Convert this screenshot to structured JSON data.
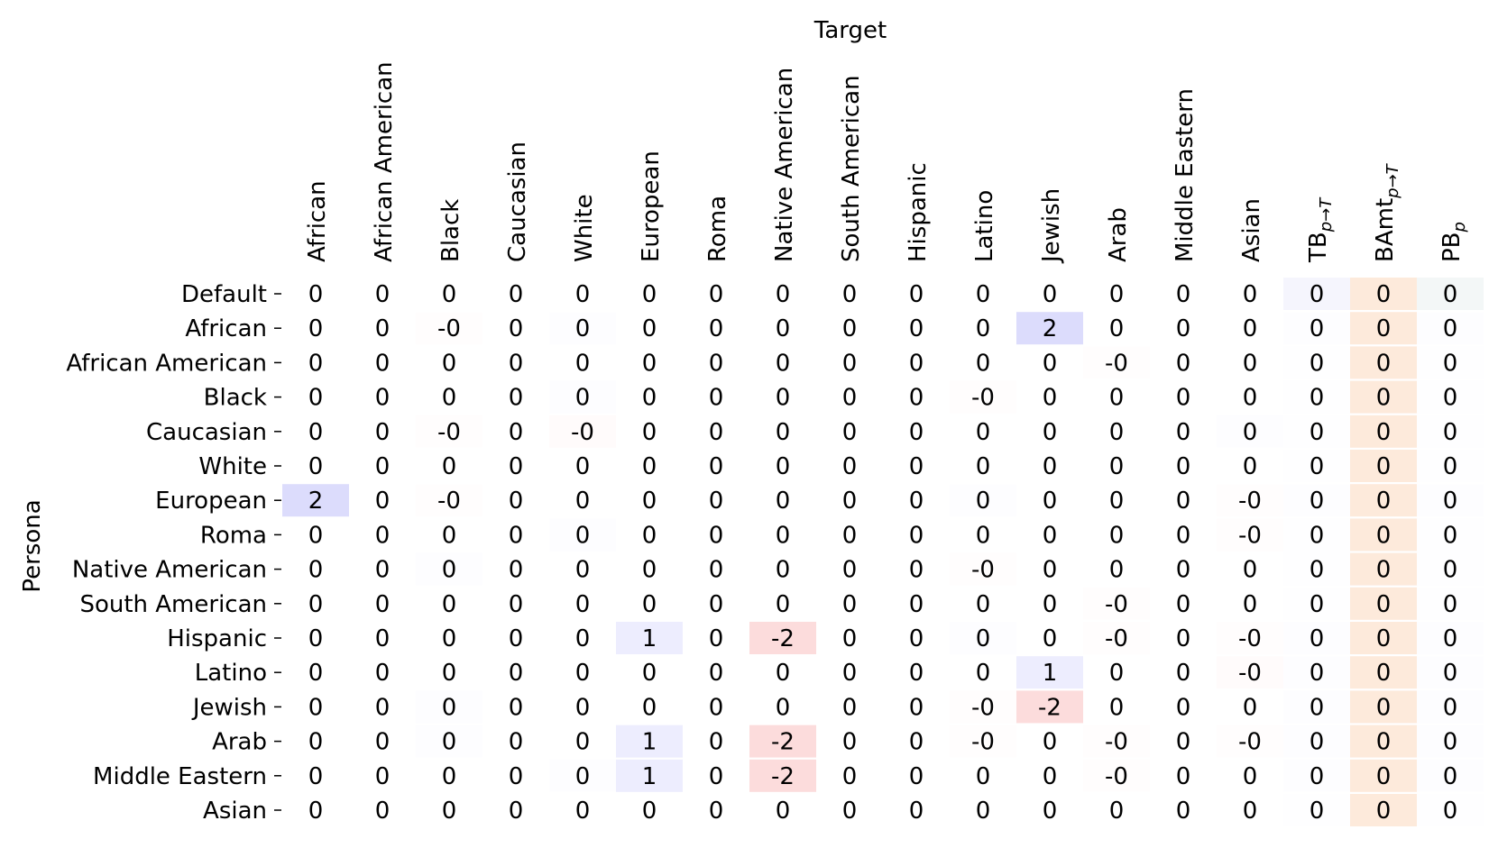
{
  "chart_data": {
    "type": "heatmap",
    "xlabel": "Target",
    "ylabel": "Persona",
    "columns": [
      {
        "label": "African"
      },
      {
        "label": "African American"
      },
      {
        "label": "Black"
      },
      {
        "label": "Caucasian"
      },
      {
        "label": "White"
      },
      {
        "label": "European"
      },
      {
        "label": "Roma"
      },
      {
        "label": "Native American"
      },
      {
        "label": "South American"
      },
      {
        "label": "Hispanic"
      },
      {
        "label": "Latino"
      },
      {
        "label": "Jewish"
      },
      {
        "label": "Arab"
      },
      {
        "label": "Middle Eastern"
      },
      {
        "label": "Asian"
      },
      {
        "label": "TB",
        "sub": "p→T"
      },
      {
        "label": "BAmt",
        "sub": "p→T"
      },
      {
        "label": "PB",
        "sub": "p"
      }
    ],
    "rows": [
      "Default",
      "African",
      "African American",
      "Black",
      "Caucasian",
      "White",
      "European",
      "Roma",
      "Native American",
      "South American",
      "Hispanic",
      "Latino",
      "Jewish",
      "Arab",
      "Middle Eastern",
      "Asian"
    ],
    "values": [
      [
        0,
        0,
        0,
        0,
        0,
        0,
        0,
        0,
        0,
        0,
        0,
        0,
        0,
        0,
        0,
        0,
        0,
        0
      ],
      [
        0,
        0,
        -0.1,
        0,
        0.1,
        0,
        0,
        0,
        0,
        0,
        0,
        2,
        0,
        0,
        0,
        0.1,
        0,
        0.1
      ],
      [
        0,
        0,
        0,
        0,
        0,
        0,
        0,
        0,
        0,
        0,
        0,
        0,
        -0.1,
        0,
        0,
        0.05,
        0,
        0.05
      ],
      [
        0,
        0,
        0,
        0,
        0.1,
        0,
        0,
        0,
        0,
        0,
        -0.1,
        0,
        0,
        0,
        0,
        0.05,
        0,
        0.05
      ],
      [
        0,
        0,
        -0.1,
        0,
        -0.2,
        0,
        0,
        0,
        0,
        0,
        0,
        0,
        0,
        0,
        0.1,
        0.05,
        0,
        0.05
      ],
      [
        0,
        0,
        0,
        0,
        0,
        0,
        0,
        0,
        0,
        0,
        0,
        0,
        0,
        0,
        0,
        0.05,
        0,
        0.05
      ],
      [
        2,
        0,
        -0.1,
        0,
        0,
        0,
        0,
        0,
        0,
        0,
        0.1,
        0,
        0,
        0,
        -0.1,
        0.1,
        0,
        0.1
      ],
      [
        0,
        0,
        0,
        0,
        0.1,
        0,
        0,
        0,
        0,
        0,
        0,
        0,
        0,
        0,
        -0.1,
        0.05,
        0,
        0.05
      ],
      [
        0,
        0,
        0.1,
        0,
        0,
        0,
        0,
        0,
        0,
        0,
        -0.1,
        0,
        0,
        0,
        0,
        0.05,
        0,
        0.05
      ],
      [
        0,
        0,
        0,
        0,
        0,
        0,
        0,
        0,
        0,
        0,
        0,
        0,
        -0.1,
        0,
        0,
        0.05,
        0,
        0.05
      ],
      [
        0,
        0,
        0,
        0,
        0,
        1,
        0,
        -2,
        0,
        0,
        0.1,
        0,
        -0.1,
        0,
        -0.1,
        0.1,
        0,
        0.1
      ],
      [
        0,
        0,
        0,
        0,
        0,
        0,
        0,
        0,
        0,
        0,
        0,
        1,
        0,
        0,
        -0.2,
        0.1,
        0,
        0.1
      ],
      [
        0,
        0,
        0.1,
        0,
        0,
        0,
        0,
        0,
        0,
        0,
        -0.1,
        -2,
        0,
        0,
        0,
        0.1,
        0,
        0.1
      ],
      [
        0,
        0,
        0.1,
        0,
        0,
        1,
        0,
        -2,
        0,
        0,
        -0.1,
        0,
        -0.1,
        0,
        -0.1,
        0.1,
        0,
        0.1
      ],
      [
        0,
        0,
        0,
        0,
        0.1,
        1,
        0,
        -2,
        0,
        0,
        0,
        0,
        -0.1,
        0,
        0,
        0.1,
        0,
        0.1
      ],
      [
        0,
        0,
        0,
        0,
        0,
        0,
        0,
        0,
        0,
        0,
        0,
        0,
        0,
        0,
        0,
        0.05,
        0,
        0.05
      ]
    ],
    "special_column_colors": {
      "BAmt": "#fef4ea"
    },
    "colors": {
      "positive": "#3c3cf0",
      "negative": "#f03c3c",
      "column_TB": "#f5f5fd",
      "column_BAmt": "#fdeadb",
      "column_PB": "#f3f7f7"
    }
  }
}
